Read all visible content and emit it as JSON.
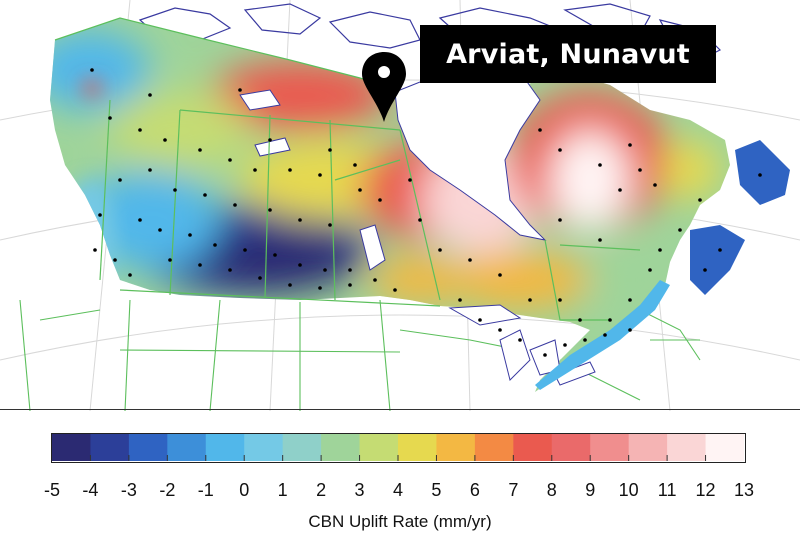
{
  "map": {
    "location_label": "Arviat, Nunavut",
    "marker_icon": "map-pin-icon"
  },
  "colorbar": {
    "label": "CBN Uplift Rate (mm/yr)",
    "ticks": [
      "-5",
      "-4",
      "-3",
      "-2",
      "-1",
      "0",
      "1",
      "2",
      "3",
      "4",
      "5",
      "6",
      "7",
      "8",
      "9",
      "10",
      "11",
      "12",
      "13"
    ],
    "colors": [
      "#2b2a72",
      "#2c3f99",
      "#2f63c2",
      "#3d8fd9",
      "#51b7ea",
      "#74c9e6",
      "#8fd0c9",
      "#9fd49a",
      "#c5dc73",
      "#e6d94f",
      "#f3b843",
      "#f38a44",
      "#ea5a4f",
      "#ea6a6a",
      "#f08e8e",
      "#f5b4b4",
      "#fad6d6",
      "#fff4f4"
    ]
  },
  "colors": {
    "negative": "#2c3f99",
    "zero": "#74c9e6",
    "mid": "#9fd49a",
    "high": "#ea5a4f",
    "max": "#fff4f4",
    "borders": "#5cbf5c"
  }
}
